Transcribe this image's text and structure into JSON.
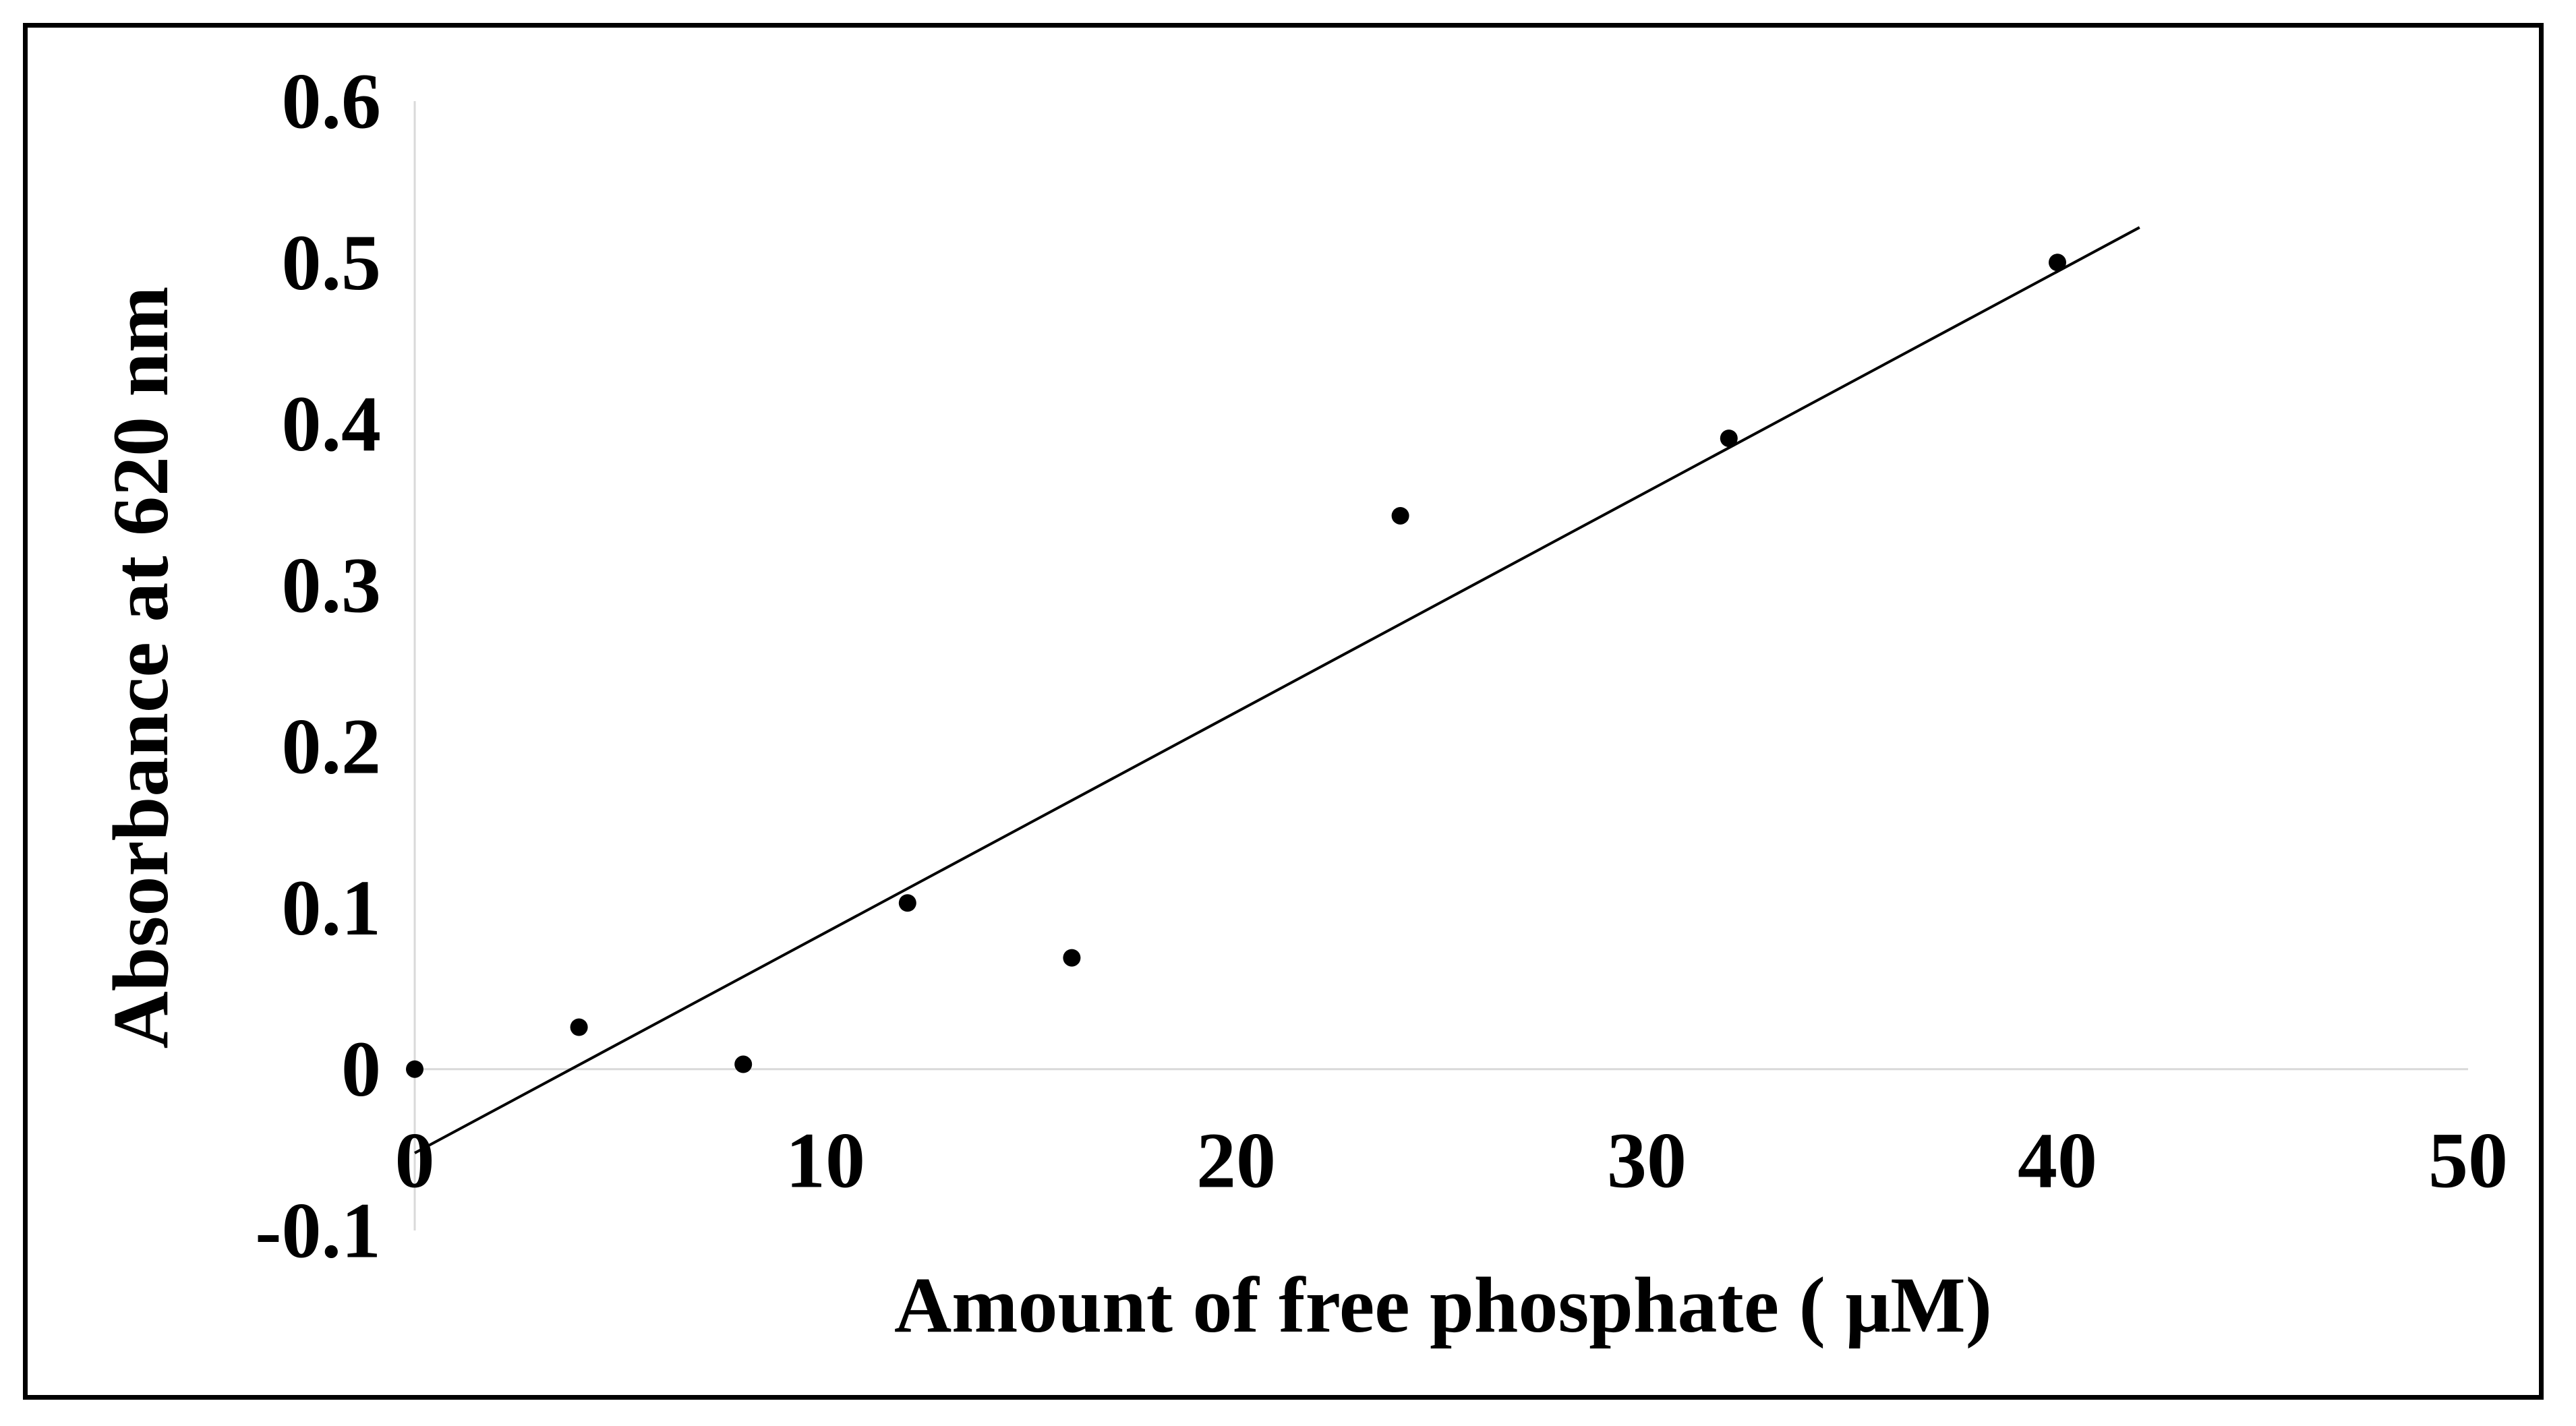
{
  "chart_data": {
    "type": "scatter",
    "title": "",
    "xlabel": "Amount of free phosphate ( μM)",
    "ylabel": "Absorbance at 620 nm",
    "xlim": [
      0,
      50
    ],
    "ylim": [
      -0.1,
      0.6
    ],
    "x_ticks": [
      {
        "value": 0,
        "label": "0"
      },
      {
        "value": 10,
        "label": "10"
      },
      {
        "value": 20,
        "label": "20"
      },
      {
        "value": 30,
        "label": "30"
      },
      {
        "value": 40,
        "label": "40"
      },
      {
        "value": 50,
        "label": "50"
      }
    ],
    "y_ticks": [
      {
        "value": 0.6,
        "label": "0.6"
      },
      {
        "value": 0.5,
        "label": "0.5"
      },
      {
        "value": 0.4,
        "label": "0.4"
      },
      {
        "value": 0.3,
        "label": "0.3"
      },
      {
        "value": 0.2,
        "label": "0.2"
      },
      {
        "value": 0.1,
        "label": "0.1"
      },
      {
        "value": 0,
        "label": "0"
      },
      {
        "value": -0.1,
        "label": "-0.1"
      }
    ],
    "points": [
      {
        "x": 0,
        "y": 0.0
      },
      {
        "x": 4,
        "y": 0.026
      },
      {
        "x": 8,
        "y": 0.003
      },
      {
        "x": 12,
        "y": 0.103
      },
      {
        "x": 16,
        "y": 0.069
      },
      {
        "x": 24,
        "y": 0.343
      },
      {
        "x": 32,
        "y": 0.391
      },
      {
        "x": 40,
        "y": 0.5
      }
    ],
    "trendline": {
      "type": "linear",
      "x_start": 0,
      "x_end": 42,
      "slope": 0.01366,
      "intercept": -0.052
    },
    "grid": false,
    "legend": "none",
    "colors": {
      "points": "#000000",
      "trendline": "#000000",
      "axes": "#d9d9d9",
      "frame": "#000000"
    }
  }
}
